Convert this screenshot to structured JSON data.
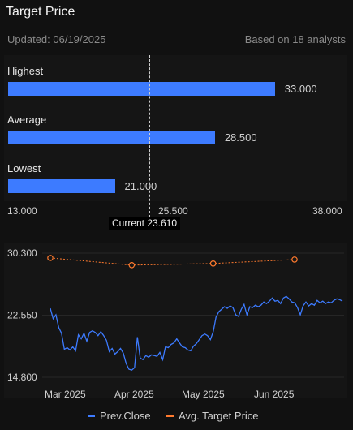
{
  "header": {
    "title": "Target Price",
    "updated": "Updated: 06/19/2025",
    "analysts": "Based on 18 analysts"
  },
  "targets": [
    {
      "label": "Highest",
      "value": "33.000",
      "num": 33.0
    },
    {
      "label": "Average",
      "value": "28.500",
      "num": 28.5
    },
    {
      "label": "Lowest",
      "value": "21.000",
      "num": 21.0
    }
  ],
  "range_axis": {
    "min": "13.000",
    "mid": "25.500",
    "max": "38.000",
    "min_num": 13.0,
    "max_num": 38.0
  },
  "current": {
    "label": "Current 23.610",
    "num": 23.61
  },
  "chart_data": {
    "type": "line",
    "y_ticks": [
      "30.300",
      "22.550",
      "14.800"
    ],
    "ylim": [
      14.8,
      30.3
    ],
    "x_ticks": [
      "Mar 2025",
      "Apr 2025",
      "May 2025",
      "Jun 2025"
    ],
    "series": [
      {
        "name": "Prev.Close",
        "color": "#3d7bff",
        "x": [
          0,
          1,
          2,
          3,
          4,
          5,
          6,
          7,
          8,
          9,
          10,
          11,
          12,
          13,
          14,
          15,
          16,
          17,
          18,
          19,
          20,
          21,
          22,
          23,
          24,
          25,
          26,
          27,
          28,
          29,
          30,
          31,
          32,
          33,
          34,
          35,
          36,
          37,
          38,
          39,
          40,
          41,
          42,
          43,
          44,
          45,
          46,
          47,
          48,
          49,
          50,
          51,
          52,
          53,
          54,
          55,
          56,
          57,
          58,
          59,
          60,
          61,
          62,
          63,
          64,
          65,
          66,
          67,
          68,
          69,
          70,
          71,
          72,
          73,
          74,
          75,
          76,
          77,
          78,
          79,
          80,
          81,
          82,
          83,
          84,
          85,
          86,
          87,
          88,
          89,
          90,
          91,
          92,
          93,
          94,
          95,
          96,
          97,
          98,
          99,
          100,
          101,
          102,
          103,
          104
        ],
        "values": [
          23.4,
          22.1,
          22.6,
          21.0,
          20.3,
          18.3,
          18.5,
          18.2,
          18.6,
          18.1,
          20.1,
          19.6,
          20.3,
          19.3,
          20.4,
          20.6,
          20.4,
          20.0,
          20.5,
          20.0,
          19.4,
          18.0,
          18.4,
          17.7,
          18.0,
          18.4,
          17.8,
          16.5,
          15.8,
          15.7,
          16.0,
          19.8,
          17.2,
          17.0,
          17.5,
          17.3,
          17.6,
          17.5,
          17.4,
          17.9,
          17.0,
          18.6,
          18.5,
          18.9,
          19.1,
          19.6,
          19.1,
          18.6,
          18.5,
          18.2,
          18.1,
          18.7,
          19.0,
          19.5,
          20.0,
          20.2,
          20.0,
          19.5,
          20.5,
          22.3,
          23.0,
          23.3,
          23.6,
          23.4,
          23.7,
          23.5,
          22.6,
          22.4,
          23.3,
          23.9,
          22.6,
          23.6,
          23.5,
          23.8,
          23.6,
          23.8,
          24.2,
          24.0,
          24.3,
          24.7,
          24.3,
          24.4,
          24.0,
          24.7,
          24.9,
          24.6,
          24.2,
          24.1,
          23.5,
          22.6,
          23.7,
          24.2,
          23.7,
          24.0,
          23.8,
          24.4,
          24.1,
          24.3,
          24.0,
          24.2,
          24.1,
          24.4,
          24.6,
          24.5,
          24.3
        ],
        "visible_points": 90
      },
      {
        "name": "Avg. Target Price",
        "color": "#ff7a2e",
        "points": [
          [
            0,
            29.7
          ],
          [
            25,
            28.8
          ],
          [
            50,
            29.0
          ],
          [
            75,
            29.5
          ]
        ]
      }
    ]
  },
  "legend": {
    "prev_close": "Prev.Close",
    "avg_target": "Avg. Target Price"
  },
  "colors": {
    "blue": "#3d7bff",
    "orange": "#ff7a2e"
  }
}
